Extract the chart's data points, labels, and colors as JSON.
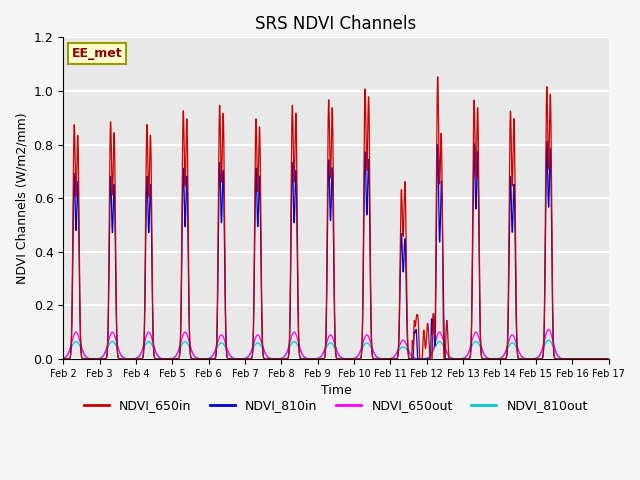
{
  "title": "SRS NDVI Channels",
  "xlabel": "Time",
  "ylabel": "NDVI Channels (W/m2/mm)",
  "ylim": [
    0,
    1.2
  ],
  "annotation_text": "EE_met",
  "legend_labels": [
    "NDVI_650in",
    "NDVI_810in",
    "NDVI_650out",
    "NDVI_810out"
  ],
  "line_colors": [
    "#cc0000",
    "#0000cc",
    "#ff00ff",
    "#00cccc"
  ],
  "background_color": "#e8e8e8",
  "peak_days": [
    2,
    3,
    4,
    5,
    6,
    7,
    8,
    9,
    10,
    11,
    12,
    13,
    14,
    15
  ],
  "peaks_650in": [
    0.86,
    0.87,
    0.86,
    0.91,
    0.93,
    0.88,
    0.93,
    0.95,
    0.99,
    0.62,
    0.93,
    0.95,
    0.91,
    1.0
  ],
  "peaks_650in_2": [
    0.82,
    0.83,
    0.82,
    0.88,
    0.9,
    0.85,
    0.9,
    0.92,
    0.96,
    0.65,
    0.9,
    0.92,
    0.88,
    0.97
  ],
  "peaks_810in": [
    0.68,
    0.67,
    0.67,
    0.7,
    0.72,
    0.7,
    0.72,
    0.73,
    0.76,
    0.46,
    0.73,
    0.79,
    0.67,
    0.8
  ],
  "peaks_810in_2": [
    0.65,
    0.64,
    0.64,
    0.67,
    0.69,
    0.67,
    0.69,
    0.7,
    0.73,
    0.44,
    0.7,
    0.76,
    0.64,
    0.77
  ],
  "peaks_650out": [
    0.1,
    0.1,
    0.1,
    0.1,
    0.09,
    0.09,
    0.1,
    0.09,
    0.09,
    0.07,
    0.1,
    0.1,
    0.09,
    0.11
  ],
  "peaks_810out": [
    0.065,
    0.065,
    0.065,
    0.065,
    0.06,
    0.06,
    0.065,
    0.06,
    0.06,
    0.045,
    0.065,
    0.065,
    0.06,
    0.07
  ],
  "feb12_noisy": true,
  "figsize": [
    6.4,
    4.8
  ],
  "dpi": 100
}
